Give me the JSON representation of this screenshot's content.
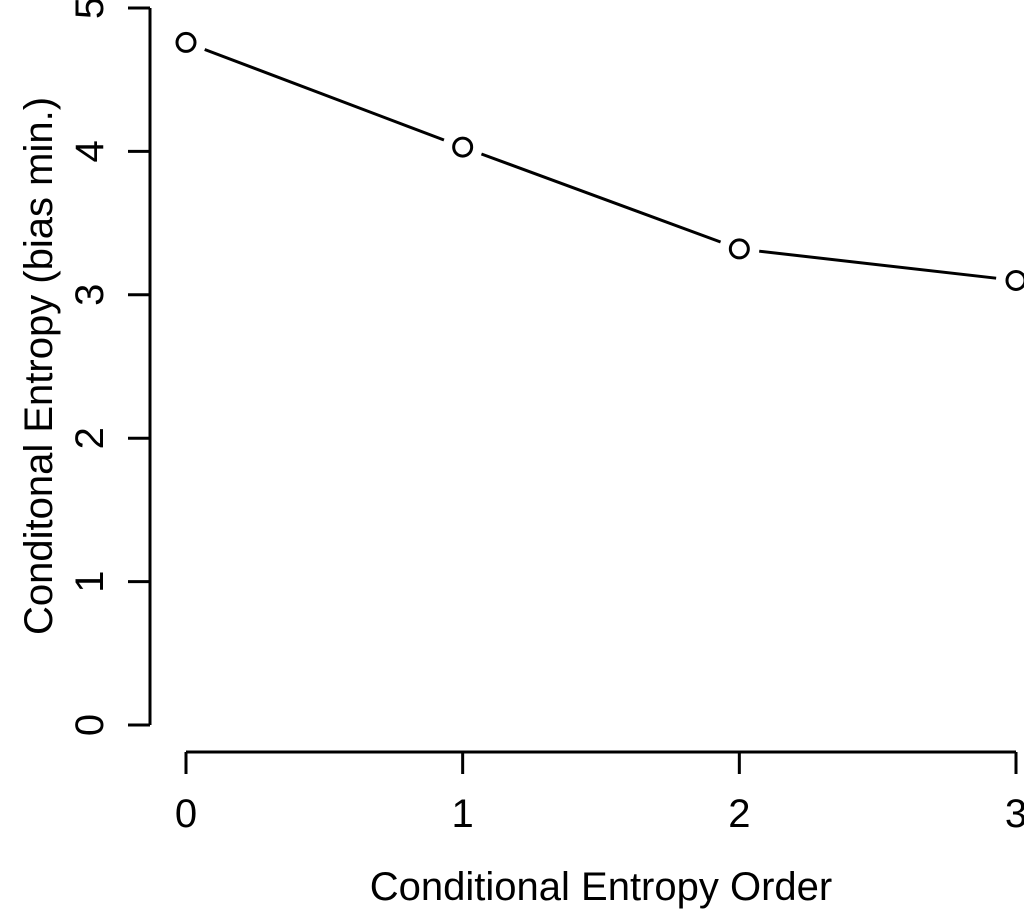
{
  "figure": {
    "background": "#ffffff",
    "ink_color": "#000000"
  },
  "chart_data": {
    "type": "line",
    "title": "",
    "xlabel": "Conditional Entropy Order",
    "ylabel": "Conditonal Entropy (bias min.)",
    "x": [
      0,
      1,
      2,
      3
    ],
    "series": [
      {
        "name": "conditional-entropy-bias-min",
        "values": [
          4.76,
          4.03,
          3.32,
          3.1
        ]
      }
    ],
    "xlim": [
      0,
      3
    ],
    "ylim": [
      0,
      5
    ],
    "x_ticks": [
      0,
      1,
      2,
      3
    ],
    "y_ticks": [
      0,
      1,
      2,
      3,
      4,
      5
    ],
    "grid": false,
    "legend": "none",
    "marker": "open-circle",
    "line_style": "solid-segments-with-gaps-at-points",
    "tick_label_orientation": {
      "x": "horizontal",
      "y": "rotated-90-ccw"
    }
  }
}
